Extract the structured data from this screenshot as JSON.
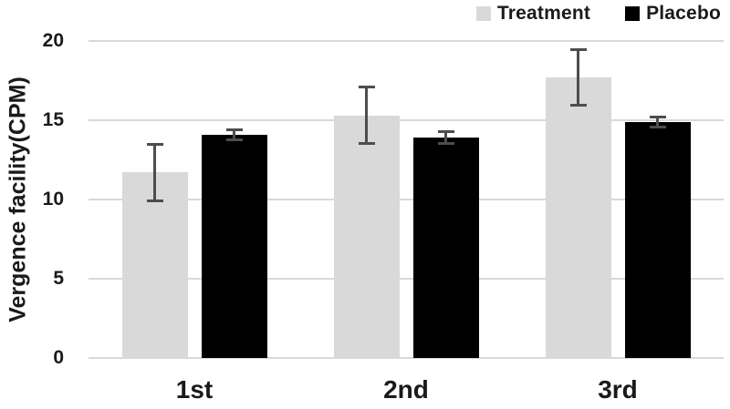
{
  "chart_data": {
    "type": "bar",
    "title": "",
    "xlabel": "",
    "ylabel": "Vergence facility(CPM)",
    "categories": [
      "1st",
      "2nd",
      "3rd"
    ],
    "series": [
      {
        "name": "Treatment",
        "color": "#d9d9d9",
        "values": [
          11.7,
          15.3,
          17.7
        ],
        "error_bars": [
          1.8,
          1.8,
          1.8
        ]
      },
      {
        "name": "Placebo",
        "color": "#000000",
        "values": [
          14.1,
          13.9,
          14.9
        ],
        "error_bars": [
          0.35,
          0.4,
          0.35
        ]
      }
    ],
    "ylim": [
      0,
      20
    ],
    "yticks": [
      0,
      5,
      10,
      15,
      20
    ],
    "grid": true,
    "legend_position": "top-right",
    "colors": {
      "error_bar": "#4d4d4d",
      "gridline": "#d9d9d9",
      "text": "#1a1a1a",
      "background": "#ffffff"
    }
  }
}
